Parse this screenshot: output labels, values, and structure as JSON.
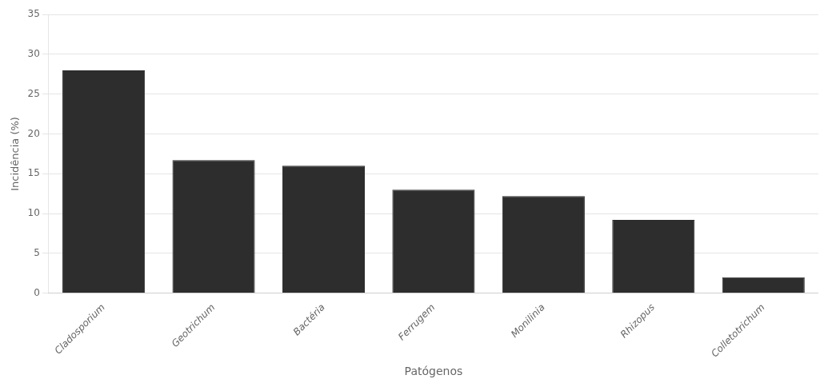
{
  "chart_data": {
    "type": "bar",
    "categories": [
      "Cladosporium",
      "Geotrichum",
      "Bactéria",
      "Ferrugem",
      "Monilinia",
      "Rhizopus",
      "Colletotrichum"
    ],
    "values": [
      28.0,
      16.7,
      16.0,
      13.0,
      12.2,
      9.2,
      2.0
    ],
    "color": "#2d2d2d",
    "xlabel": "Patógenos",
    "ylabel": "Incidência (%)",
    "ylim": [
      0,
      35
    ],
    "yticks": [
      0,
      5,
      10,
      15,
      20,
      25,
      30,
      35
    ],
    "grid": true
  }
}
